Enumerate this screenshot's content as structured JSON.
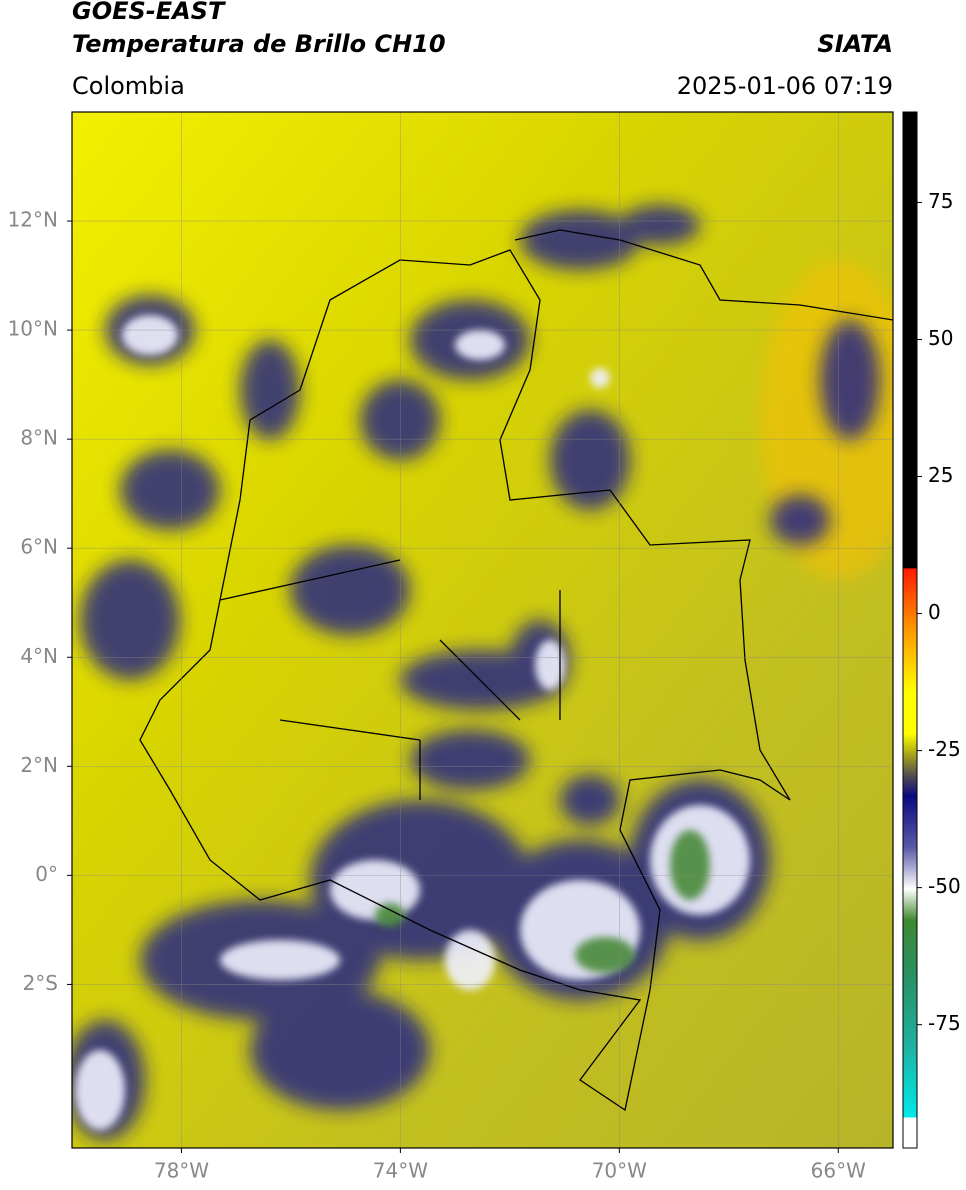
{
  "header": {
    "title": "GOES-EAST",
    "subtitle": "Temperatura de Brillo CH10",
    "source": "SIATA",
    "region": "Colombia",
    "datetime": "2025-01-06 07:19"
  },
  "map": {
    "lonlim": [
      -80,
      -65
    ],
    "latlim": [
      -5,
      14
    ],
    "xticks": [
      {
        "value": -78,
        "label": "78°W"
      },
      {
        "value": -74,
        "label": "74°W"
      },
      {
        "value": -70,
        "label": "70°W"
      },
      {
        "value": -66,
        "label": "66°W"
      }
    ],
    "yticks": [
      {
        "value": 12,
        "label": "12°N"
      },
      {
        "value": 10,
        "label": "10°N"
      },
      {
        "value": 8,
        "label": "8°N"
      },
      {
        "value": 6,
        "label": "6°N"
      },
      {
        "value": 4,
        "label": "4°N"
      },
      {
        "value": 2,
        "label": "2°N"
      },
      {
        "value": 0,
        "label": "0°"
      },
      {
        "value": -2,
        "label": "2°S"
      }
    ],
    "colorbar": {
      "lim": [
        -97.5,
        91.5
      ],
      "ticks": [
        75,
        50,
        25,
        0,
        -25,
        -50,
        -75
      ]
    }
  }
}
